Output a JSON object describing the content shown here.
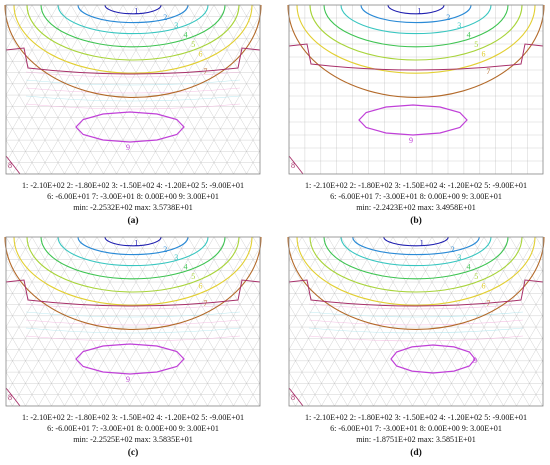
{
  "figure": {
    "panels": [
      {
        "id": "a",
        "label_text": "(a)",
        "legend_line1": "1: -2.10E+02   2: -1.80E+02   3: -1.50E+02   4: -1.20E+02   5: -9.00E+01",
        "legend_line2": "6: -6.00E+01   7: -3.00E+01   8: 0.00E+00   9: 3.00E+01",
        "legend_line3": "min: -2.2532E+02   max: 3.5738E+01",
        "mesh": "triangular"
      },
      {
        "id": "b",
        "label_text": "(b)",
        "legend_line1": "1: -2.10E+02   2: -1.80E+02   3: -1.50E+02   4: -1.20E+02   5: -9.00E+01",
        "legend_line2": "6: -6.00E+01   7: -3.00E+01   8: 0.00E+00   9: 3.00E+01",
        "legend_line3": "min: -2.2423E+02   max: 3.4958E+01",
        "mesh": "rectangular"
      },
      {
        "id": "c",
        "label_text": "(c)",
        "legend_line1": "1: -2.10E+02   2: -1.80E+02   3: -1.50E+02   4: -1.20E+02   5: -9.00E+01",
        "legend_line2": "6: -6.00E+01   7: -3.00E+01   8: 0.00E+00   9: 3.00E+01",
        "legend_line3": "min: -2.2525E+02   max: 3.5835E+01",
        "mesh": "triangular"
      },
      {
        "id": "d",
        "label_text": "(d)",
        "legend_line1": "1: -2.10E+02   2: -1.80E+02   3: -1.50E+02   4: -1.20E+02   5: -9.00E+01",
        "legend_line2": "6: -6.00E+01   7: -3.00E+01   8: 0.00E+00   9: 3.00E+01",
        "legend_line3": "min: -1.8751E+02   max: 3.5851E+01",
        "mesh": "triangular"
      }
    ],
    "contour_levels": [
      {
        "n": "1",
        "value": -210,
        "color": "#1f1fb0"
      },
      {
        "n": "2",
        "value": -180,
        "color": "#2a8ad6"
      },
      {
        "n": "3",
        "value": -150,
        "color": "#38c6c0"
      },
      {
        "n": "4",
        "value": -120,
        "color": "#3ec452"
      },
      {
        "n": "5",
        "value": -90,
        "color": "#a8d43a"
      },
      {
        "n": "6",
        "value": -60,
        "color": "#e2cf32"
      },
      {
        "n": "7",
        "value": -30,
        "color": "#b36a2a"
      },
      {
        "n": "8",
        "value": 0,
        "color": "#a8306a"
      },
      {
        "n": "9",
        "value": 30,
        "color": "#c040d8"
      }
    ],
    "colors": {
      "mesh_line": "#bdbdbd",
      "frame": "#888888",
      "aux_pink": "#f0a6d8",
      "aux_cyan": "#9fe0ea"
    }
  }
}
